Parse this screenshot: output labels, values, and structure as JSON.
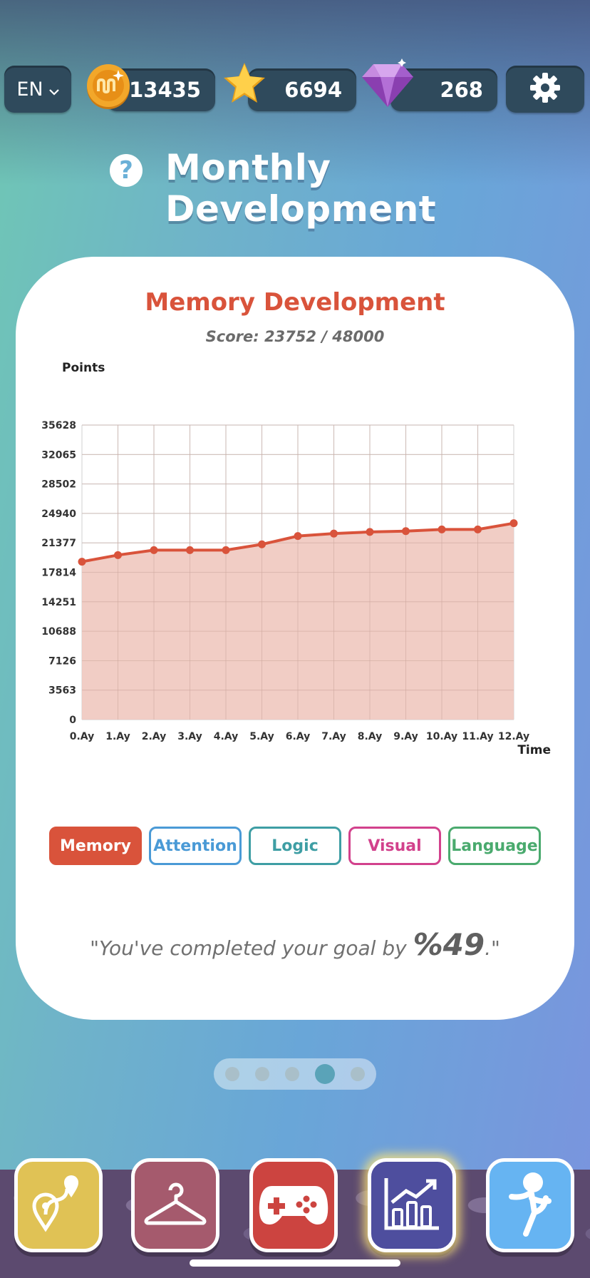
{
  "topbar": {
    "language": "EN",
    "coins": "13435",
    "stars": "6694",
    "gems": "268"
  },
  "page_title": "Monthly Development",
  "card": {
    "chart_title": "Memory Development",
    "score_text": "Score: 23752 / 48000",
    "goal_prefix": "\"You've completed your goal by ",
    "goal_value": "%49",
    "goal_suffix": ".\""
  },
  "categories": [
    {
      "label": "Memory",
      "color": "#d9533b",
      "active": true
    },
    {
      "label": "Attention",
      "color": "#4a9ad6",
      "active": false
    },
    {
      "label": "Logic",
      "color": "#3e9ea4",
      "active": false
    },
    {
      "label": "Visual",
      "color": "#d2418c",
      "active": false
    },
    {
      "label": "Language",
      "color": "#4aaa6e",
      "active": false
    }
  ],
  "pagination": {
    "count": 5,
    "active": 3
  },
  "nav": [
    {
      "name": "map",
      "icon": "map-route-icon",
      "color": "#e0c255"
    },
    {
      "name": "wardrobe",
      "icon": "hanger-icon",
      "color": "#a55a6d"
    },
    {
      "name": "games",
      "icon": "gamepad-icon",
      "color": "#cc4440"
    },
    {
      "name": "stats",
      "icon": "bar-chart-icon",
      "color": "#4e4e9e",
      "active": true
    },
    {
      "name": "exercise",
      "icon": "running-figure-icon",
      "color": "#66b4f2"
    }
  ],
  "chart_data": {
    "type": "area",
    "ylabel": "Points",
    "xlabel": "Time",
    "y_ticks": [
      "0",
      "3563",
      "7126",
      "10688",
      "14251",
      "17814",
      "21377",
      "24940",
      "28502",
      "32065",
      "35628"
    ],
    "categories": [
      "0.Ay",
      "1.Ay",
      "2.Ay",
      "3.Ay",
      "4.Ay",
      "5.Ay",
      "6.Ay",
      "7.Ay",
      "8.Ay",
      "9.Ay",
      "10.Ay",
      "11.Ay",
      "12.Ay"
    ],
    "values": [
      19100,
      19900,
      20500,
      20500,
      20500,
      21200,
      22200,
      22500,
      22700,
      22800,
      23000,
      23000,
      23752
    ],
    "ylim": [
      0,
      35628
    ],
    "grid": true,
    "line_color": "#d9533b",
    "fill_color": "#efc8bf"
  }
}
